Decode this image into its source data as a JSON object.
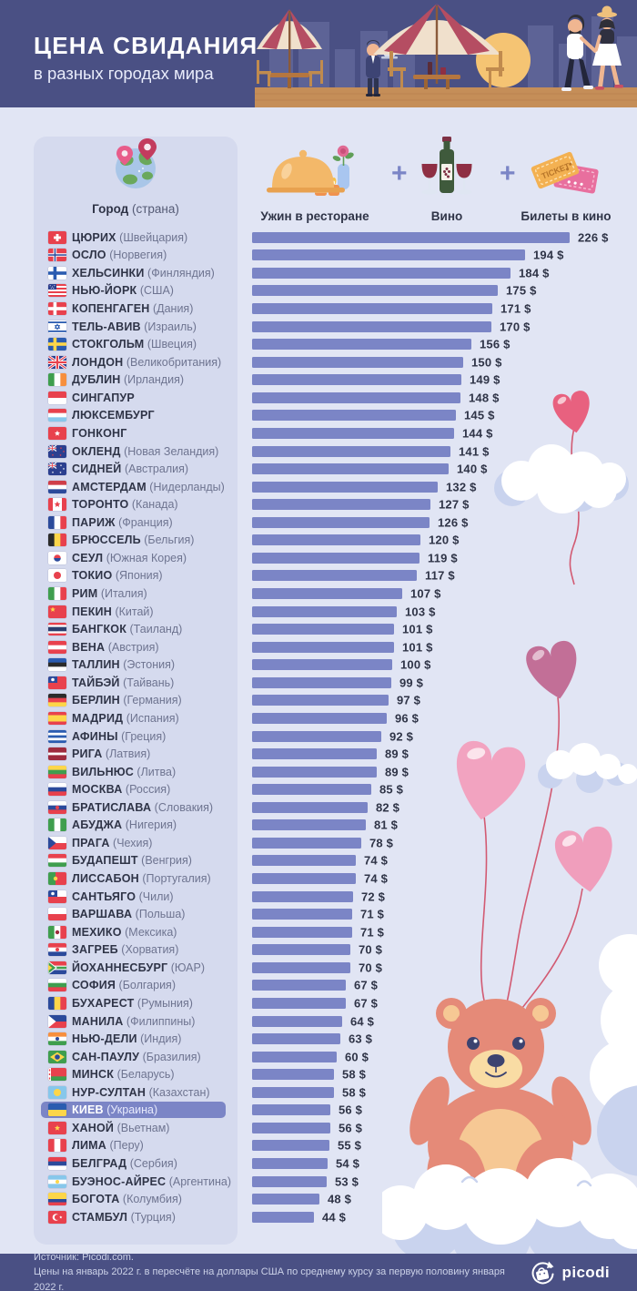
{
  "page": {
    "bg": "#e1e5f4",
    "panel_bg": "#d5daee",
    "accent": "#7b85c6",
    "header_bg": "#4a5084",
    "text_dark": "#2f3447",
    "text_muted": "#6e7490"
  },
  "header": {
    "title": "ЦЕНА СВИДАНИЯ",
    "subtitle": "в разных городах мира"
  },
  "legend": {
    "city_header": {
      "bold": "Город",
      "normal": "(страна)"
    },
    "plus": "+",
    "ticket_text": "TICKET",
    "items": [
      {
        "icon": "dinner-icon",
        "label": "Ужин в ресторане"
      },
      {
        "icon": "wine-icon",
        "label": "Вино"
      },
      {
        "icon": "cinema-tickets-icon",
        "label": "Билеты в кино"
      }
    ]
  },
  "chart_data": {
    "type": "bar",
    "orientation": "horizontal",
    "unit": "USD",
    "value_suffix": "$",
    "xlim": [
      0,
      226
    ],
    "bar_color": "#7b85c6",
    "highlighted_city": "КИЕВ",
    "rows": [
      {
        "city": "ЦЮРИХ",
        "country": "Швейцария",
        "value": 226,
        "flag": {
          "t": "plus",
          "c": [
            "#e8414d"
          ],
          "o": "#fff"
        }
      },
      {
        "city": "ОСЛО",
        "country": "Норвегия",
        "value": 194,
        "flag": {
          "t": "nordic",
          "c": [
            "#e8414d"
          ],
          "o": [
            "#fff",
            "#2b4a9b"
          ]
        }
      },
      {
        "city": "ХЕЛЬСИНКИ",
        "country": "Финляндия",
        "value": 184,
        "flag": {
          "t": "nordic",
          "c": [
            "#fff"
          ],
          "o": [
            "#2b5cb0"
          ]
        }
      },
      {
        "city": "НЬЮ-ЙОРК",
        "country": "США",
        "value": 175,
        "flag": {
          "t": "usa",
          "c": [
            "#e8414d",
            "#fff"
          ],
          "o": "#2b3f8f"
        }
      },
      {
        "city": "КОПЕНГАГЕН",
        "country": "Дания",
        "value": 171,
        "flag": {
          "t": "nordic",
          "c": [
            "#e8414d"
          ],
          "o": [
            "#fff"
          ]
        }
      },
      {
        "city": "ТЕЛЬ-АВИВ",
        "country": "Израиль",
        "value": 170,
        "flag": {
          "t": "israel",
          "c": [
            "#fff"
          ],
          "o": "#2b5cb0"
        }
      },
      {
        "city": "СТОКГОЛЬМ",
        "country": "Швеция",
        "value": 156,
        "flag": {
          "t": "nordic",
          "c": [
            "#2b5cb0"
          ],
          "o": [
            "#fdd64a"
          ]
        }
      },
      {
        "city": "ЛОНДОН",
        "country": "Великобритания",
        "value": 150,
        "flag": {
          "t": "uk",
          "c": [
            "#2b3f8f"
          ],
          "o": [
            "#fff",
            "#e8414d"
          ]
        }
      },
      {
        "city": "ДУБЛИН",
        "country": "Ирландия",
        "value": 149,
        "flag": {
          "t": "v",
          "c": [
            "#3f9e4e",
            "#fff",
            "#f78f3e"
          ]
        }
      },
      {
        "city": "СИНГАПУР",
        "country": "",
        "value": 148,
        "flag": {
          "t": "h",
          "c": [
            "#e8414d",
            "#fff"
          ]
        }
      },
      {
        "city": "ЛЮКСЕМБУРГ",
        "country": "",
        "value": 145,
        "flag": {
          "t": "h",
          "c": [
            "#e8414d",
            "#fff",
            "#87c7eb"
          ]
        }
      },
      {
        "city": "ГОНКОНГ",
        "country": "",
        "value": 144,
        "flag": {
          "t": "star",
          "c": [
            "#e8414d"
          ],
          "o": "#fff"
        }
      },
      {
        "city": "ОКЛЕНД",
        "country": "Новая Зеландия",
        "value": 141,
        "flag": {
          "t": "aus",
          "c": [
            "#2b3f8f"
          ],
          "o": "#e8414d"
        }
      },
      {
        "city": "СИДНЕЙ",
        "country": "Австралия",
        "value": 140,
        "flag": {
          "t": "aus",
          "c": [
            "#2b3f8f"
          ],
          "o": "#fff"
        }
      },
      {
        "city": "АМСТЕРДАМ",
        "country": "Нидерланды",
        "value": 132,
        "flag": {
          "t": "h",
          "c": [
            "#cf3e49",
            "#fff",
            "#2b4a9b"
          ]
        }
      },
      {
        "city": "ТОРОНТО",
        "country": "Канада",
        "value": 127,
        "flag": {
          "t": "canada",
          "c": [
            "#fff"
          ],
          "o": "#e8414d"
        }
      },
      {
        "city": "ПАРИЖ",
        "country": "Франция",
        "value": 126,
        "flag": {
          "t": "v",
          "c": [
            "#2b4a9b",
            "#fff",
            "#e8414d"
          ]
        }
      },
      {
        "city": "БРЮССЕЛЬ",
        "country": "Бельгия",
        "value": 120,
        "flag": {
          "t": "v",
          "c": [
            "#2b2b2b",
            "#fdd64a",
            "#e8414d"
          ]
        }
      },
      {
        "city": "СЕУЛ",
        "country": "Южная Корея",
        "value": 119,
        "flag": {
          "t": "korea",
          "c": [
            "#fff"
          ],
          "o": [
            "#e8414d",
            "#2b4a9b"
          ]
        }
      },
      {
        "city": "ТОКИО",
        "country": "Япония",
        "value": 117,
        "flag": {
          "t": "disc",
          "c": [
            "#fff"
          ],
          "o": "#e8414d"
        }
      },
      {
        "city": "РИМ",
        "country": "Италия",
        "value": 107,
        "flag": {
          "t": "v",
          "c": [
            "#3f9e4e",
            "#fff",
            "#e8414d"
          ]
        }
      },
      {
        "city": "ПЕКИН",
        "country": "Китай",
        "value": 103,
        "flag": {
          "t": "star",
          "c": [
            "#e8414d"
          ],
          "o": "#fdd64a",
          "d": "tl"
        }
      },
      {
        "city": "БАНГКОК",
        "country": "Таиланд",
        "value": 101,
        "flag": {
          "t": "h",
          "c": [
            "#e8414d",
            "#fff",
            "#2b3f6f",
            "#fff",
            "#e8414d"
          ],
          "w": [
            1,
            1,
            2,
            1,
            1
          ]
        }
      },
      {
        "city": "ВЕНА",
        "country": "Австрия",
        "value": 101,
        "flag": {
          "t": "h",
          "c": [
            "#e8414d",
            "#fff",
            "#e8414d"
          ]
        }
      },
      {
        "city": "ТАЛЛИН",
        "country": "Эстония",
        "value": 100,
        "flag": {
          "t": "h",
          "c": [
            "#2b5cb0",
            "#2b2b2b",
            "#fff"
          ]
        }
      },
      {
        "city": "ТАЙБЭЙ",
        "country": "Тайвань",
        "value": 99,
        "flag": {
          "t": "canton",
          "c": [
            "#e8414d"
          ],
          "o": "#2b4a9b",
          "d": "#fff"
        }
      },
      {
        "city": "БЕРЛИН",
        "country": "Германия",
        "value": 97,
        "flag": {
          "t": "h",
          "c": [
            "#2b2b2b",
            "#e8414d",
            "#fdd64a"
          ]
        }
      },
      {
        "city": "МАДРИД",
        "country": "Испания",
        "value": 96,
        "flag": {
          "t": "h",
          "c": [
            "#e8414d",
            "#fdd64a",
            "#e8414d"
          ],
          "w": [
            1,
            2,
            1
          ]
        }
      },
      {
        "city": "АФИНЫ",
        "country": "Греция",
        "value": 92,
        "flag": {
          "t": "h",
          "c": [
            "#2b5cb0",
            "#fff",
            "#2b5cb0",
            "#fff",
            "#2b5cb0"
          ]
        }
      },
      {
        "city": "РИГА",
        "country": "Латвия",
        "value": 89,
        "flag": {
          "t": "h",
          "c": [
            "#9e2b3e",
            "#fff",
            "#9e2b3e"
          ],
          "w": [
            2,
            1,
            2
          ]
        }
      },
      {
        "city": "ВИЛЬНЮС",
        "country": "Литва",
        "value": 89,
        "flag": {
          "t": "h",
          "c": [
            "#fdd64a",
            "#3f9e4e",
            "#e8414d"
          ]
        }
      },
      {
        "city": "МОСКВА",
        "country": "Россия",
        "value": 85,
        "flag": {
          "t": "h",
          "c": [
            "#fff",
            "#2b4a9b",
            "#e8414d"
          ]
        }
      },
      {
        "city": "БРАТИСЛАВА",
        "country": "Словакия",
        "value": 82,
        "flag": {
          "t": "h",
          "c": [
            "#fff",
            "#2b4a9b",
            "#e8414d"
          ],
          "d": "#e8414d"
        }
      },
      {
        "city": "АБУДЖА",
        "country": "Нигерия",
        "value": 81,
        "flag": {
          "t": "v",
          "c": [
            "#3f9e4e",
            "#fff",
            "#3f9e4e"
          ]
        }
      },
      {
        "city": "ПРАГА",
        "country": "Чехия",
        "value": 78,
        "flag": {
          "t": "triangle",
          "c": [
            "#fff",
            "#e8414d"
          ],
          "o": "#2b4a9b"
        }
      },
      {
        "city": "БУДАПЕШТ",
        "country": "Венгрия",
        "value": 74,
        "flag": {
          "t": "h",
          "c": [
            "#e8414d",
            "#fff",
            "#3f9e4e"
          ]
        }
      },
      {
        "city": "ЛИССАБОН",
        "country": "Португалия",
        "value": 74,
        "flag": {
          "t": "v",
          "c": [
            "#3f9e4e",
            "#e8414d"
          ],
          "w": [
            2,
            3
          ],
          "d": "#fdd64a"
        }
      },
      {
        "city": "САНТЬЯГО",
        "country": "Чили",
        "value": 72,
        "flag": {
          "t": "canton",
          "c": [
            "#fff",
            "#e8414d"
          ],
          "o": "#2b4a9b",
          "d": "#fff"
        }
      },
      {
        "city": "ВАРШАВА",
        "country": "Польша",
        "value": 71,
        "flag": {
          "t": "h",
          "c": [
            "#fff",
            "#e8414d"
          ]
        }
      },
      {
        "city": "МЕХИКО",
        "country": "Мексика",
        "value": 71,
        "flag": {
          "t": "v",
          "c": [
            "#3f9e4e",
            "#fff",
            "#e8414d"
          ],
          "d": "#9e2b3e"
        }
      },
      {
        "city": "ЗАГРЕБ",
        "country": "Хорватия",
        "value": 70,
        "flag": {
          "t": "h",
          "c": [
            "#e8414d",
            "#fff",
            "#2b4a9b"
          ],
          "d": "#e8414d"
        }
      },
      {
        "city": "ЙОХАННЕСБУРГ",
        "country": "ЮАР",
        "value": 70,
        "flag": {
          "t": "za",
          "c": [
            "#e8414d",
            "#fff",
            "#2b4a9b"
          ],
          "o": "#3f9e4e"
        }
      },
      {
        "city": "СОФИЯ",
        "country": "Болгария",
        "value": 67,
        "flag": {
          "t": "h",
          "c": [
            "#fff",
            "#3f9e4e",
            "#e8414d"
          ]
        }
      },
      {
        "city": "БУХАРЕСТ",
        "country": "Румыния",
        "value": 67,
        "flag": {
          "t": "v",
          "c": [
            "#2b4a9b",
            "#fdd64a",
            "#e8414d"
          ]
        }
      },
      {
        "city": "МАНИЛА",
        "country": "Филиппины",
        "value": 64,
        "flag": {
          "t": "triangle",
          "c": [
            "#2b4a9b",
            "#e8414d"
          ],
          "o": "#fff"
        }
      },
      {
        "city": "НЬЮ-ДЕЛИ",
        "country": "Индия",
        "value": 63,
        "flag": {
          "t": "h",
          "c": [
            "#f78f3e",
            "#fff",
            "#3f9e4e"
          ],
          "d": "#2b4a9b"
        }
      },
      {
        "city": "САН-ПАУЛУ",
        "country": "Бразилия",
        "value": 60,
        "flag": {
          "t": "brazil",
          "c": [
            "#3f9e4e"
          ],
          "o": [
            "#fdd64a",
            "#2b4a9b"
          ]
        }
      },
      {
        "city": "МИНСК",
        "country": "Беларусь",
        "value": 58,
        "flag": {
          "t": "belarus",
          "c": [
            "#e8414d",
            "#3f9e4e"
          ],
          "o": "#fff"
        }
      },
      {
        "city": "НУР-СУЛТАН",
        "country": "Казахстан",
        "value": 58,
        "flag": {
          "t": "disc",
          "c": [
            "#87c7eb"
          ],
          "o": "#fdd64a"
        }
      },
      {
        "city": "КИЕВ",
        "country": "Украина",
        "value": 56,
        "flag": {
          "t": "h",
          "c": [
            "#2b5cb0",
            "#fdd64a"
          ]
        }
      },
      {
        "city": "ХАНОЙ",
        "country": "Вьетнам",
        "value": 56,
        "flag": {
          "t": "star",
          "c": [
            "#e8414d"
          ],
          "o": "#fdd64a"
        }
      },
      {
        "city": "ЛИМА",
        "country": "Перу",
        "value": 55,
        "flag": {
          "t": "v",
          "c": [
            "#e8414d",
            "#fff",
            "#e8414d"
          ]
        }
      },
      {
        "city": "БЕЛГРАД",
        "country": "Сербия",
        "value": 54,
        "flag": {
          "t": "h",
          "c": [
            "#e8414d",
            "#2b4a9b",
            "#fff"
          ]
        }
      },
      {
        "city": "БУЭНОС-АЙРЕС",
        "country": "Аргентина",
        "value": 53,
        "flag": {
          "t": "h",
          "c": [
            "#87c7eb",
            "#fff",
            "#87c7eb"
          ],
          "d": "#fdd64a"
        }
      },
      {
        "city": "БОГОТА",
        "country": "Колумбия",
        "value": 48,
        "flag": {
          "t": "h",
          "c": [
            "#fdd64a",
            "#2b4a9b",
            "#e8414d"
          ],
          "w": [
            2,
            1,
            1
          ]
        }
      },
      {
        "city": "СТАМБУЛ",
        "country": "Турция",
        "value": 44,
        "flag": {
          "t": "crescent",
          "c": [
            "#e8414d"
          ],
          "o": "#fff"
        }
      }
    ]
  },
  "footer": {
    "source": "Источник: Picodi.com.",
    "note": "Цены на январь 2022 г. в пересчёте на доллары США по среднему курсу за первую половину января 2022 г.",
    "brand": "picodi"
  }
}
